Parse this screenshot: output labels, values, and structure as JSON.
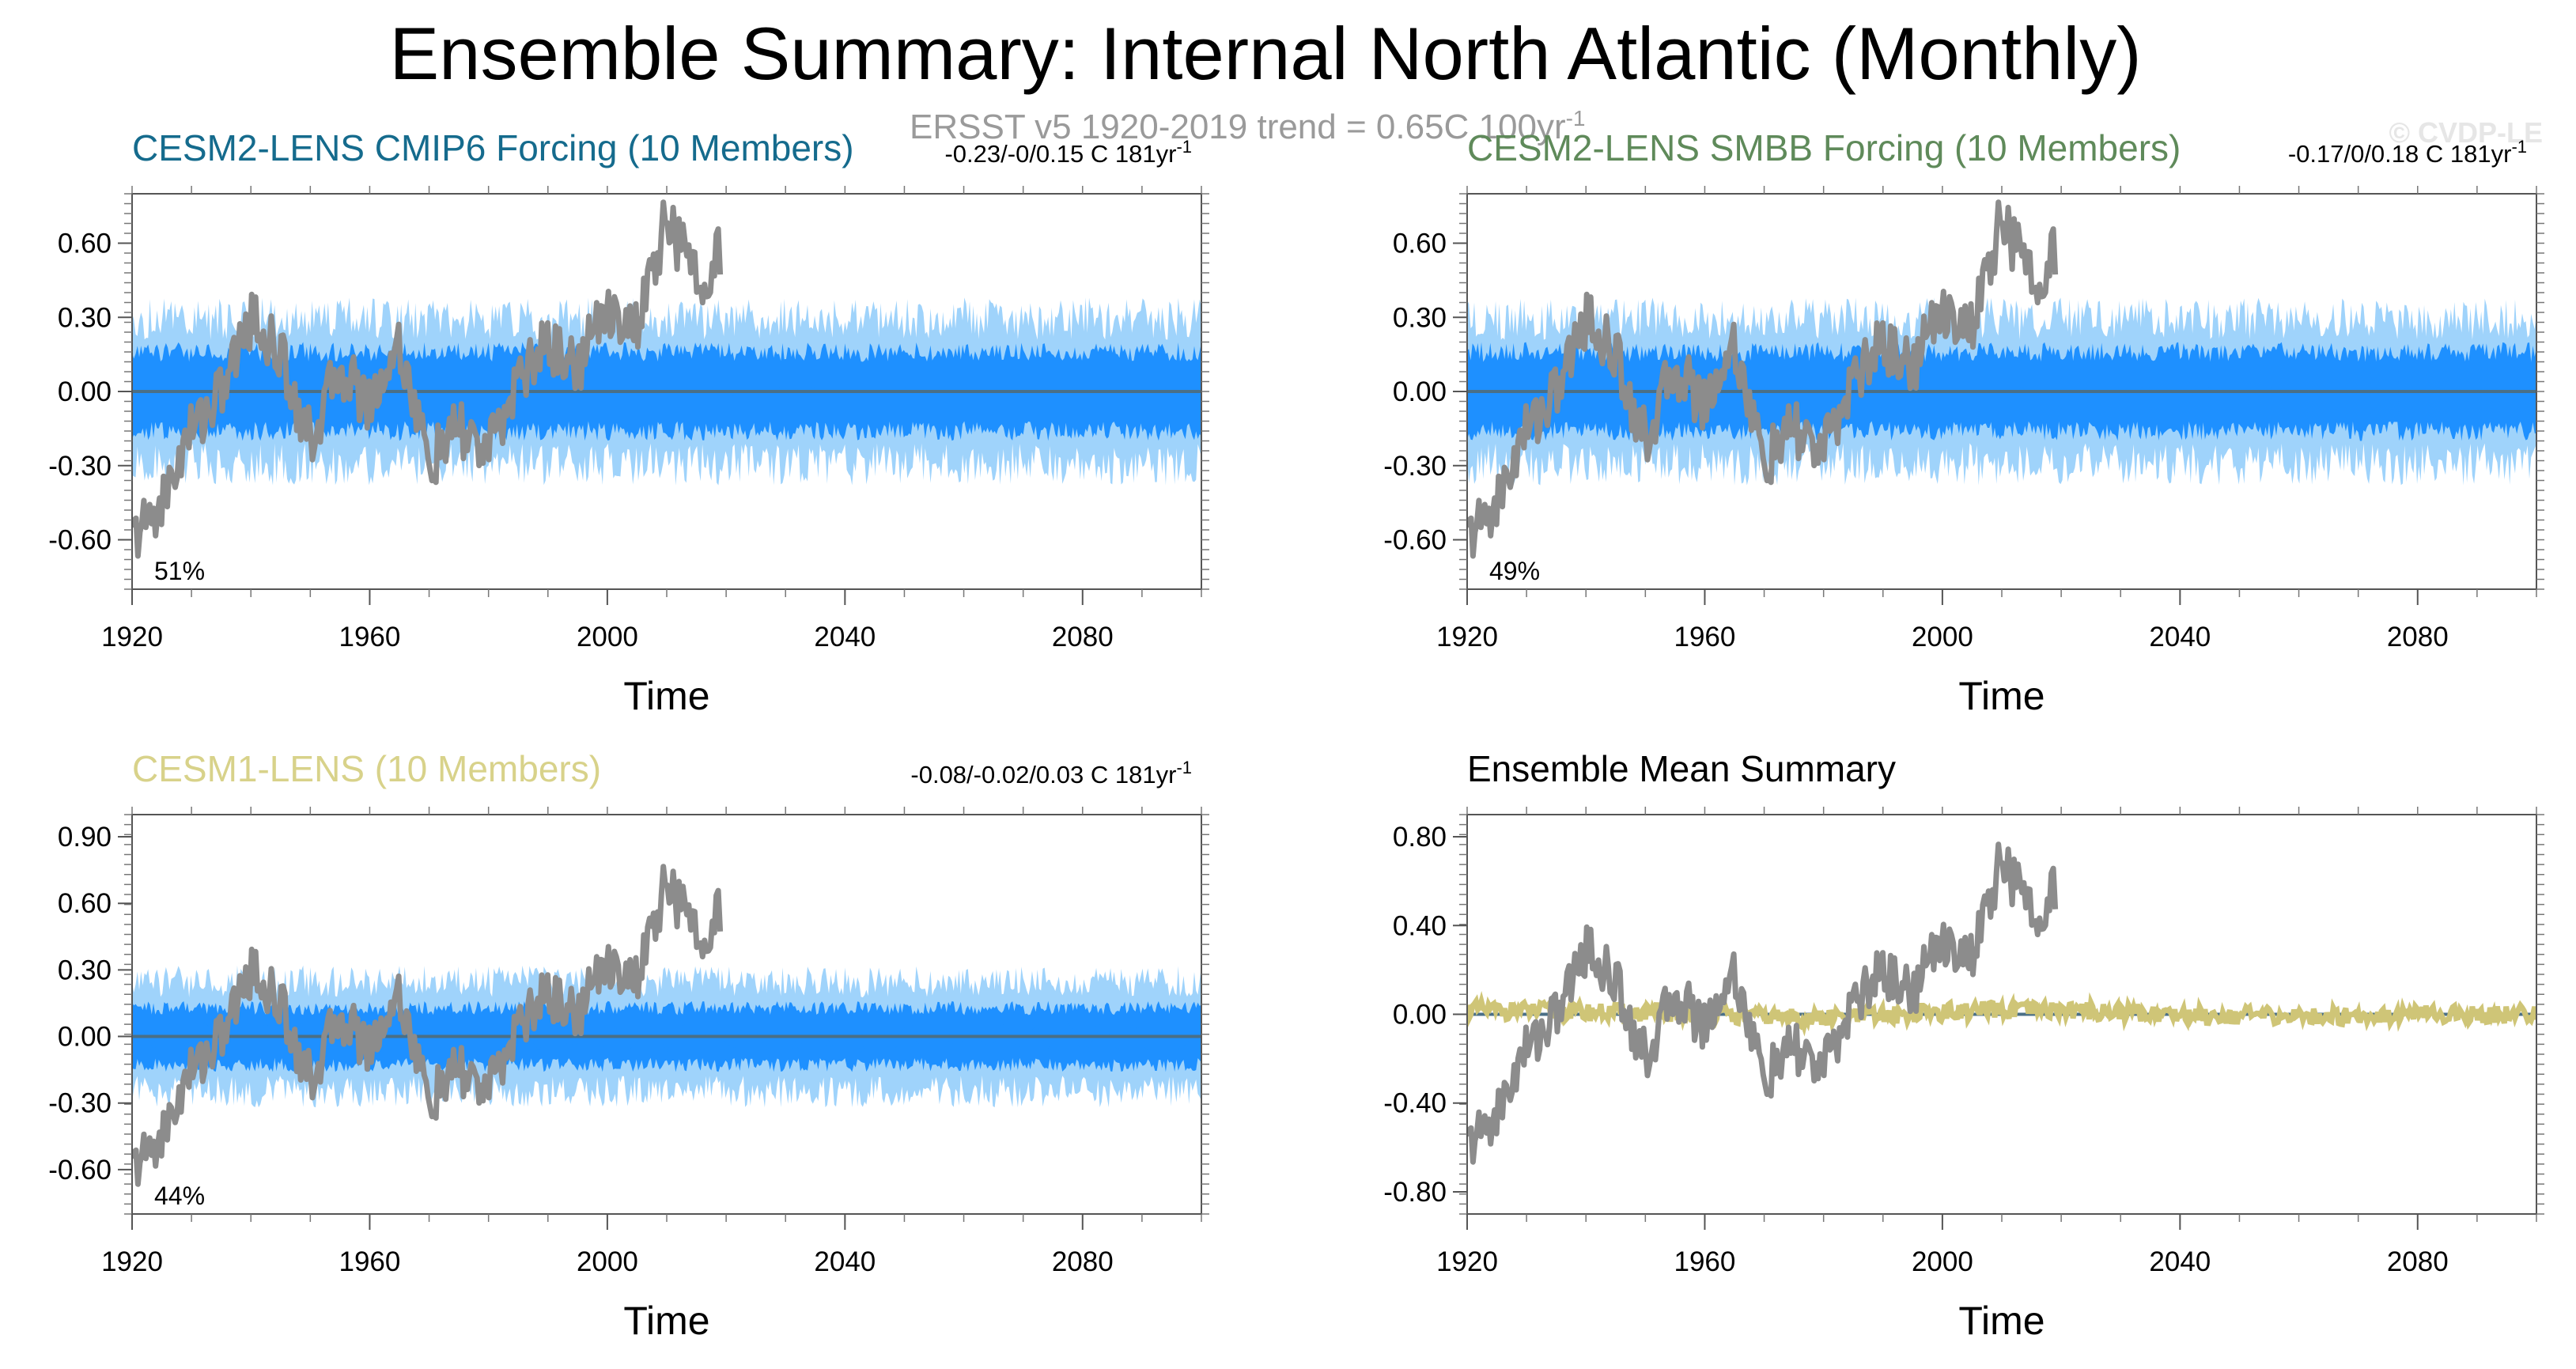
{
  "figure": {
    "title": "Ensemble Summary: Internal North Atlantic (Monthly)",
    "subtitle": "ERSST v5 1920-2019 trend = 0.65C 100yr",
    "subtitle_sup": "-1",
    "watermark": "© CVDP-LE"
  },
  "colors": {
    "obs": "#8c8c8c",
    "ens_member": "#9fd3fb",
    "ens_spread": "#1e90ff",
    "zero_line": "#4a6f86",
    "cesm2_cmip6": "#156b8d",
    "cesm2_smbb": "#5f8a5a",
    "cesm1": "#d8d28a",
    "ens_mean_line": "#cfc577"
  },
  "chart_data": [
    {
      "type": "line",
      "title": "CESM2-LENS CMIP6 Forcing (10 Members)",
      "trend_text": "-0.23/-0/0.15 C 181yr",
      "trend_sup": "-1",
      "xlabel": "Time",
      "ylabel": "",
      "xlim": [
        1920,
        2100
      ],
      "ylim": [
        -0.8,
        0.8
      ],
      "x_ticks": [
        "1920",
        "1960",
        "2000",
        "2040",
        "2080"
      ],
      "y_ticks": [
        "0.60",
        "0.30",
        "0.00",
        "-0.30",
        "-0.60"
      ],
      "y_tick_values": [
        0.6,
        0.3,
        0,
        -0.3,
        -0.6
      ],
      "percent_label": "51%",
      "spread_amplitude": 0.2,
      "outer_amplitude": 0.38,
      "mean_amplitude": 0.01,
      "series": [
        {
          "x": [
            1920,
            1925,
            1930,
            1935,
            1940,
            1945,
            1950,
            1955,
            1960,
            1965,
            1970,
            1975,
            1980,
            1985,
            1990,
            1995,
            2000,
            2005,
            2010,
            2015,
            2019
          ],
          "values": [
            -0.6,
            -0.45,
            -0.15,
            0.0,
            0.3,
            0.15,
            -0.2,
            0.1,
            -0.05,
            0.2,
            -0.3,
            -0.15,
            -0.25,
            0.05,
            0.2,
            0.1,
            0.35,
            0.25,
            0.7,
            0.45,
            0.55
          ]
        },
        {
          "x": [
            1920,
            2100
          ],
          "values": [
            0,
            0
          ]
        }
      ]
    },
    {
      "type": "line",
      "title": "CESM2-LENS SMBB Forcing (10 Members)",
      "trend_text": "-0.17/0/0.18 C 181yr",
      "trend_sup": "-1",
      "xlabel": "Time",
      "ylabel": "",
      "xlim": [
        1920,
        2100
      ],
      "ylim": [
        -0.8,
        0.8
      ],
      "x_ticks": [
        "1920",
        "1960",
        "2000",
        "2040",
        "2080"
      ],
      "y_ticks": [
        "0.60",
        "0.30",
        "0.00",
        "-0.30",
        "-0.60"
      ],
      "y_tick_values": [
        0.6,
        0.3,
        0,
        -0.3,
        -0.6
      ],
      "percent_label": "49%",
      "spread_amplitude": 0.2,
      "outer_amplitude": 0.38,
      "mean_amplitude": 0.01,
      "series": [
        {
          "x": [
            1920,
            1925,
            1930,
            1935,
            1940,
            1945,
            1950,
            1955,
            1960,
            1965,
            1970,
            1975,
            1980,
            1985,
            1990,
            1995,
            2000,
            2005,
            2010,
            2015,
            2019
          ],
          "values": [
            -0.6,
            -0.45,
            -0.15,
            0.0,
            0.3,
            0.15,
            -0.2,
            0.1,
            -0.05,
            0.2,
            -0.3,
            -0.15,
            -0.25,
            0.05,
            0.2,
            0.1,
            0.35,
            0.25,
            0.7,
            0.45,
            0.55
          ]
        },
        {
          "x": [
            1920,
            2100
          ],
          "values": [
            0,
            0
          ]
        }
      ]
    },
    {
      "type": "line",
      "title": "CESM1-LENS (10 Members)",
      "trend_text": "-0.08/-0.02/0.03 C 181yr",
      "trend_sup": "-1",
      "xlabel": "Time",
      "ylabel": "",
      "xlim": [
        1920,
        2100
      ],
      "ylim": [
        -0.8,
        1.0
      ],
      "x_ticks": [
        "1920",
        "1960",
        "2000",
        "2040",
        "2080"
      ],
      "y_ticks": [
        "0.90",
        "0.60",
        "0.30",
        "0.00",
        "-0.30",
        "-0.60"
      ],
      "y_tick_values": [
        0.9,
        0.6,
        0.3,
        0,
        -0.3,
        -0.6
      ],
      "percent_label": "44%",
      "spread_amplitude": 0.16,
      "outer_amplitude": 0.32,
      "mean_amplitude": 0.05,
      "series": [
        {
          "x": [
            1920,
            1925,
            1930,
            1935,
            1940,
            1945,
            1950,
            1955,
            1960,
            1965,
            1970,
            1975,
            1980,
            1985,
            1990,
            1995,
            2000,
            2005,
            2010,
            2015,
            2019
          ],
          "values": [
            -0.6,
            -0.45,
            -0.15,
            0.0,
            0.3,
            0.15,
            -0.2,
            0.1,
            -0.05,
            0.2,
            -0.3,
            -0.15,
            -0.25,
            0.05,
            0.2,
            0.1,
            0.35,
            0.25,
            0.7,
            0.45,
            0.55
          ]
        },
        {
          "x": [
            1920,
            2100
          ],
          "values": [
            0,
            0
          ]
        }
      ]
    },
    {
      "type": "line",
      "title": "Ensemble Mean Summary",
      "trend_text": "",
      "trend_sup": "",
      "xlabel": "Time",
      "ylabel": "",
      "xlim": [
        1920,
        2100
      ],
      "ylim": [
        -0.9,
        0.9
      ],
      "x_ticks": [
        "1920",
        "1960",
        "2000",
        "2040",
        "2080"
      ],
      "y_ticks": [
        "0.80",
        "0.40",
        "0.00",
        "-0.40",
        "-0.80"
      ],
      "y_tick_values": [
        0.8,
        0.4,
        0,
        -0.4,
        -0.8
      ],
      "percent_label": "",
      "series": [
        {
          "x": [
            1920,
            1925,
            1930,
            1935,
            1940,
            1945,
            1950,
            1955,
            1960,
            1965,
            1970,
            1975,
            1980,
            1985,
            1990,
            1995,
            2000,
            2005,
            2010,
            2015,
            2019
          ],
          "values": [
            -0.6,
            -0.45,
            -0.15,
            0.0,
            0.3,
            0.15,
            -0.2,
            0.1,
            -0.05,
            0.2,
            -0.3,
            -0.15,
            -0.25,
            0.05,
            0.2,
            0.1,
            0.35,
            0.25,
            0.7,
            0.45,
            0.55
          ]
        },
        {
          "x": [
            1920,
            1940,
            1960,
            1980,
            2000,
            2020,
            2040,
            2060,
            2080,
            2100
          ],
          "values": [
            0.02,
            0.01,
            0.0,
            -0.02,
            0.01,
            0.02,
            0.0,
            -0.01,
            0.0,
            0.0
          ]
        },
        {
          "x": [
            1920,
            2100
          ],
          "values": [
            0,
            0
          ]
        }
      ]
    }
  ]
}
